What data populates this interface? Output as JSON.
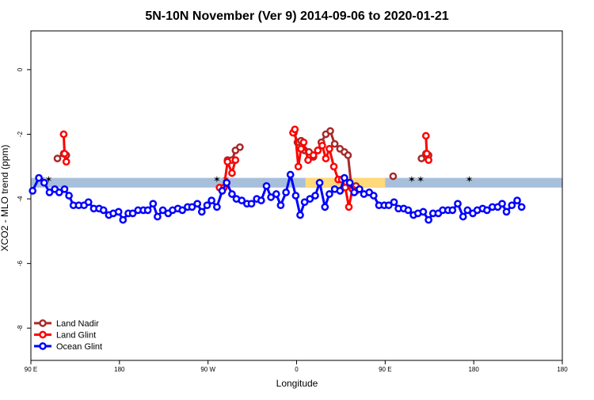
{
  "chart_data": {
    "type": "line",
    "title": "5N-10N November (Ver 9)   2014-09-06 to 2020-01-21",
    "xlabel": "Longitude",
    "ylabel": "XCO2 - MLO trend (ppm)",
    "x_range_index": [
      0,
      6
    ],
    "x_ticks": [
      {
        "pos": 0,
        "label": "90 E"
      },
      {
        "pos": 1,
        "label": "180"
      },
      {
        "pos": 2,
        "label": "90 W"
      },
      {
        "pos": 3,
        "label": "0"
      },
      {
        "pos": 4,
        "label": "90 E"
      },
      {
        "pos": 5,
        "label": "180"
      }
    ],
    "ylim": [
      -9,
      1.2
    ],
    "y_ticks": [
      0,
      -2,
      -4,
      -6,
      -8
    ],
    "grid": false,
    "legend_position": "bottom-left",
    "band": {
      "y_min": -3.65,
      "y_max": -3.35,
      "color": "#a8bfdc"
    },
    "band_highlights": {
      "color": "#ffd97a",
      "ranges": [
        [
          3.1,
          4.0
        ]
      ]
    },
    "star_markers": {
      "color": "#ffd97a",
      "x": [
        0.12,
        0.2,
        2.1,
        2.2,
        4.3,
        4.4,
        4.95
      ]
    },
    "series": [
      {
        "name": "Land Nadir",
        "color": "#a52a2a",
        "segments": [
          {
            "x": [
              0.3,
              0.37,
              0.4
            ],
            "y": [
              -2.75,
              -2.6,
              -2.65
            ]
          },
          {
            "x": [
              2.22,
              2.27,
              2.31,
              2.36
            ],
            "y": [
              -2.8,
              -2.8,
              -2.5,
              -2.4
            ]
          },
          {
            "x": [
              2.97,
              3.01,
              3.05,
              3.09,
              3.14,
              3.19,
              3.24,
              3.28,
              3.33,
              3.38,
              3.43,
              3.49,
              3.54,
              3.58,
              3.62,
              3.67
            ],
            "y": [
              -1.95,
              -2.25,
              -2.2,
              -2.5,
              -2.55,
              -2.7,
              -2.5,
              -2.25,
              -2.0,
              -1.9,
              -2.3,
              -2.45,
              -2.55,
              -2.65,
              -3.65,
              -3.6
            ]
          },
          {
            "x": [
              4.09
            ],
            "y": [
              -3.3
            ]
          },
          {
            "x": [
              4.41,
              4.46,
              4.49
            ],
            "y": [
              -2.75,
              -2.6,
              -2.65
            ]
          }
        ]
      },
      {
        "name": "Land Glint",
        "color": "#ff0000",
        "segments": [
          {
            "x": [
              0.37,
              0.38,
              0.4
            ],
            "y": [
              -2.0,
              -2.6,
              -2.85
            ]
          },
          {
            "x": [
              2.13,
              2.18,
              2.22,
              2.27,
              2.31
            ],
            "y": [
              -3.65,
              -3.65,
              -2.85,
              -3.2,
              -2.8
            ]
          },
          {
            "x": [
              2.96,
              2.98,
              3.02,
              3.05,
              3.08,
              3.13,
              3.19,
              3.24,
              3.29,
              3.33,
              3.37,
              3.42,
              3.47,
              3.51,
              3.55,
              3.59,
              3.63,
              3.67
            ],
            "y": [
              -1.95,
              -1.85,
              -3.0,
              -2.45,
              -2.25,
              -2.8,
              -2.65,
              -2.5,
              -2.35,
              -2.75,
              -2.45,
              -3.0,
              -3.4,
              -3.4,
              -3.65,
              -4.25,
              -3.7,
              -3.75
            ]
          },
          {
            "x": [
              4.46,
              4.47,
              4.49
            ],
            "y": [
              -2.05,
              -2.6,
              -2.8
            ]
          }
        ]
      },
      {
        "name": "Ocean Glint",
        "color": "#0000ff",
        "segments": [
          {
            "x": [
              0.02,
              0.09,
              0.15,
              0.21,
              0.27,
              0.32,
              0.38,
              0.43,
              0.48,
              0.54,
              0.6,
              0.65,
              0.71,
              0.77,
              0.82,
              0.88,
              0.93,
              0.99,
              1.04,
              1.1,
              1.15,
              1.21,
              1.27,
              1.32,
              1.38,
              1.43,
              1.49,
              1.55,
              1.6,
              1.66,
              1.71,
              1.77,
              1.82,
              1.88,
              1.93,
              1.99,
              2.04,
              2.1,
              2.16,
              2.21,
              2.27,
              2.32,
              2.38,
              2.44,
              2.49,
              2.55,
              2.6,
              2.66,
              2.71,
              2.77,
              2.82,
              2.88,
              2.93,
              2.99,
              3.04,
              3.09,
              3.15,
              3.21,
              3.26,
              3.32,
              3.37,
              3.43,
              3.49,
              3.54,
              3.6,
              3.65,
              3.71,
              3.76,
              3.82,
              3.87,
              3.93,
              3.99,
              4.04,
              4.1,
              4.15,
              4.21,
              4.26,
              4.32,
              4.37,
              4.43,
              4.49,
              4.54,
              4.6,
              4.65,
              4.71,
              4.76,
              4.82,
              4.88,
              4.93,
              4.99,
              5.04,
              5.1,
              5.15,
              5.21,
              5.27,
              5.32,
              5.37,
              5.43,
              5.49,
              5.54
            ],
            "y": [
              -3.75,
              -3.35,
              -3.5,
              -3.8,
              -3.7,
              -3.8,
              -3.7,
              -3.9,
              -4.2,
              -4.2,
              -4.2,
              -4.1,
              -4.3,
              -4.3,
              -4.35,
              -4.5,
              -4.45,
              -4.4,
              -4.65,
              -4.45,
              -4.45,
              -4.35,
              -4.35,
              -4.35,
              -4.15,
              -4.55,
              -4.35,
              -4.45,
              -4.35,
              -4.3,
              -4.35,
              -4.25,
              -4.25,
              -4.15,
              -4.4,
              -4.2,
              -4.05,
              -4.25,
              -3.75,
              -3.5,
              -3.85,
              -4.0,
              -4.05,
              -4.15,
              -4.15,
              -4.0,
              -4.05,
              -3.6,
              -3.95,
              -3.85,
              -4.2,
              -3.8,
              -3.25,
              -3.9,
              -4.5,
              -4.1,
              -4.0,
              -3.9,
              -3.5,
              -4.25,
              -3.85,
              -3.7,
              -3.75,
              -3.35,
              -3.5,
              -3.8,
              -3.7,
              -3.85,
              -3.8,
              -3.9,
              -4.2,
              -4.2,
              -4.2,
              -4.1,
              -4.3,
              -4.3,
              -4.35,
              -4.5,
              -4.45,
              -4.4,
              -4.65,
              -4.45,
              -4.45,
              -4.35,
              -4.35,
              -4.35,
              -4.15,
              -4.55,
              -4.35,
              -4.45,
              -4.35,
              -4.3,
              -4.35,
              -4.25,
              -4.25,
              -4.15,
              -4.4,
              -4.2,
              -4.05,
              -4.25
            ]
          }
        ]
      }
    ]
  }
}
